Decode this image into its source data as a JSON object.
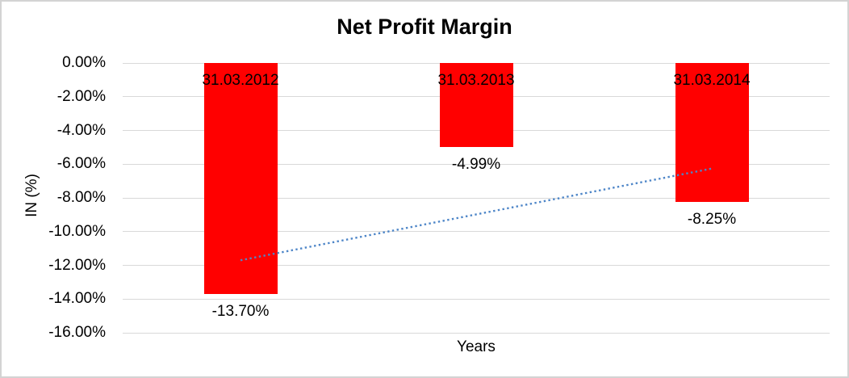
{
  "window": {
    "background": "#FFFFFF",
    "border_color": "#D3D3D3"
  },
  "chart_data": {
    "type": "bar",
    "title": "Net Profit Margin",
    "xlabel": "Years",
    "ylabel": "IN (%)",
    "categories": [
      "31.03.2012",
      "31.03.2013",
      "31.03.2014"
    ],
    "values": [
      -13.7,
      -4.99,
      -8.25
    ],
    "data_labels": [
      "-13.70%",
      "-4.99%",
      "-8.25%"
    ],
    "ylim": [
      -16,
      0
    ],
    "ytick_labels": [
      "0.00%",
      "-2.00%",
      "-4.00%",
      "-6.00%",
      "-8.00%",
      "-10.00%",
      "-12.00%",
      "-14.00%",
      "-16.00%"
    ],
    "grid": true,
    "legend": "none",
    "bar_color": "#FF0000",
    "gridline_color": "#D9D9D9",
    "text_color": "#000000",
    "trendline": {
      "type": "linear",
      "style": "dotted",
      "color": "#4E86C8",
      "start_value": -11.7,
      "end_value": -6.26
    }
  }
}
